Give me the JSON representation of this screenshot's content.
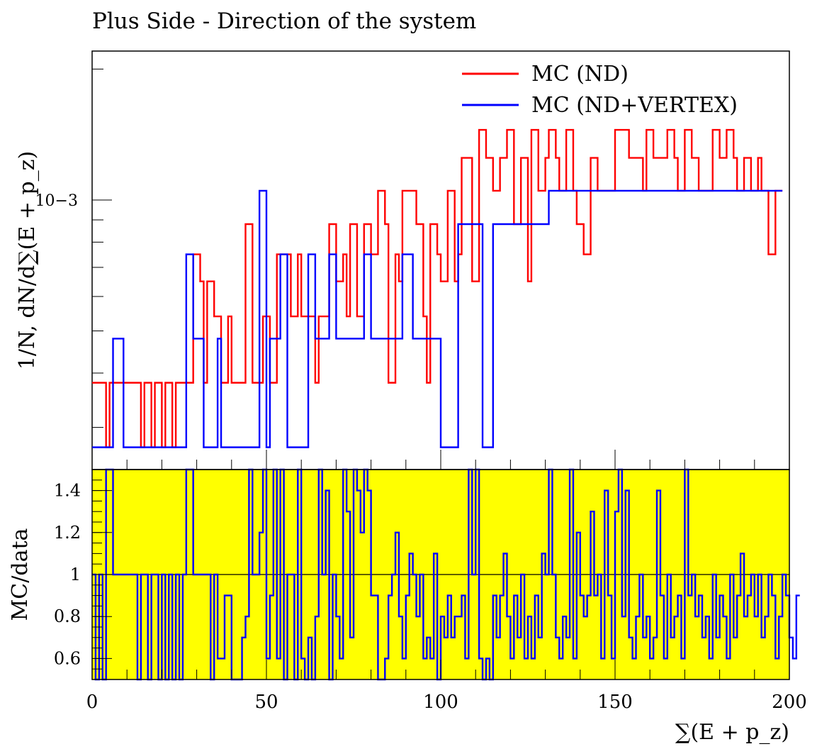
{
  "title": "Plus Side - Direction of the system",
  "chart_data": [
    {
      "type": "line",
      "panel": "main",
      "subtype": "step-histogram",
      "ylabel": "1/N, dN/d∑(E + p_z)",
      "yscale": "log",
      "ytick_labels": [
        {
          "value": 0.001,
          "label": "10−3"
        }
      ],
      "xlim": [
        0,
        200
      ],
      "legend_position": "top-right",
      "bin_width": 1,
      "series": [
        {
          "name": "MC (ND)",
          "color": "#ff0000",
          "values": [
            0.00038,
            0.00038,
            0.00038,
            0.00038,
            0.00027,
            0.00038,
            0.00038,
            0.00038,
            0.00038,
            0.00038,
            0.00038,
            0.00038,
            0.00038,
            0.00038,
            0.00027,
            0.00038,
            0.00038,
            0.00027,
            0.00038,
            0.00038,
            0.00027,
            0.00038,
            0.00038,
            0.00027,
            0.00038,
            0.00038,
            0.00038,
            0.00038,
            0.00038,
            0.00075,
            0.00075,
            0.00065,
            0.00038,
            0.00065,
            0.00065,
            0.00054,
            0.00054,
            0.00038,
            0.00038,
            0.00054,
            0.00038,
            0.00038,
            0.00038,
            0.00038,
            0.00088,
            0.00088,
            0.00038,
            0.00038,
            0.00038,
            0.00054,
            0.00054,
            0.00038,
            0.00038,
            0.00075,
            0.00075,
            0.00075,
            0.00075,
            0.00054,
            0.00054,
            0.00075,
            0.00054,
            0.00054,
            0.00054,
            0.00054,
            0.00038,
            0.00054,
            0.00054,
            0.00054,
            0.00088,
            0.00088,
            0.00065,
            0.00065,
            0.00075,
            0.00054,
            0.00088,
            0.00088,
            0.00054,
            0.00054,
            0.00088,
            0.00088,
            0.00075,
            0.00075,
            0.00105,
            0.00105,
            0.00088,
            0.00038,
            0.00038,
            0.00075,
            0.00065,
            0.00105,
            0.00105,
            0.00105,
            0.00105,
            0.00088,
            0.00088,
            0.00054,
            0.00038,
            0.00088,
            0.00088,
            0.00075,
            0.00065,
            0.00065,
            0.00105,
            0.00105,
            0.00065,
            0.00075,
            0.00125,
            0.00125,
            0.00125,
            0.00065,
            0.00065,
            0.00145,
            0.00145,
            0.00125,
            0.00125,
            0.00105,
            0.00105,
            0.00125,
            0.00125,
            0.00145,
            0.00145,
            0.00088,
            0.00088,
            0.00125,
            0.00125,
            0.00065,
            0.00145,
            0.00145,
            0.00105,
            0.00105,
            0.00125,
            0.00145,
            0.00145,
            0.00125,
            0.00105,
            0.00105,
            0.00145,
            0.00145,
            0.00105,
            0.00088,
            0.00088,
            0.00075,
            0.00075,
            0.00125,
            0.00125,
            0.00105,
            0.00105,
            0.00105,
            0.00105,
            0.00105,
            0.00145,
            0.00145,
            0.00145,
            0.00145,
            0.00125,
            0.00125,
            0.00125,
            0.00125,
            0.00105,
            0.00145,
            0.00145,
            0.00125,
            0.00125,
            0.00125,
            0.00125,
            0.00145,
            0.00145,
            0.00125,
            0.00105,
            0.00105,
            0.00145,
            0.00145,
            0.00125,
            0.00125,
            0.00105,
            0.00105,
            0.00105,
            0.00105,
            0.00145,
            0.00145,
            0.00125,
            0.00125,
            0.00145,
            0.00145,
            0.00125,
            0.00105,
            0.00105,
            0.00125,
            0.00125,
            0.00105,
            0.00105,
            0.00125,
            0.00105,
            0.00105,
            0.00075,
            0.00075,
            0.00105,
            0.00105
          ]
        },
        {
          "name": "MC (ND+VERTEX)",
          "color": "#0000ff",
          "values": [
            0.00027,
            0.00027,
            0.00027,
            0.00027,
            0.00027,
            0.00027,
            0.00048,
            0.00048,
            0.00048,
            0.00027,
            0.00027,
            0.00027,
            0.00027,
            0.00027,
            0.00027,
            0.00027,
            0.00027,
            0.00027,
            0.00027,
            0.00027,
            0.00027,
            0.00027,
            0.00027,
            0.00027,
            0.00027,
            0.00027,
            0.00027,
            0.00075,
            0.00075,
            0.00048,
            0.00048,
            0.00048,
            0.00027,
            0.00027,
            0.00027,
            0.00027,
            0.00048,
            0.00027,
            0.00027,
            0.00027,
            0.00027,
            0.00027,
            0.00027,
            0.00027,
            0.00027,
            0.00027,
            0.00027,
            0.00027,
            0.00105,
            0.00105,
            0.00027,
            0.00048,
            0.00048,
            0.00048,
            0.00075,
            0.00075,
            0.00027,
            0.00027,
            0.00027,
            0.00027,
            0.00027,
            0.00027,
            0.00075,
            0.00075,
            0.00048,
            0.00048,
            0.00048,
            0.00048,
            0.00075,
            0.00075,
            0.00048,
            0.00048,
            0.00048,
            0.00048,
            0.00048,
            0.00048,
            0.00048,
            0.00048,
            0.00075,
            0.00075,
            0.00048,
            0.00048,
            0.00048,
            0.00048,
            0.00048,
            0.00048,
            0.00048,
            0.00048,
            0.00048,
            0.00075,
            0.00075,
            0.00075,
            0.00048,
            0.00048,
            0.00048,
            0.00048,
            0.00048,
            0.00048,
            0.00048,
            0.00048,
            0.00027,
            0.00027,
            0.00027,
            0.00027,
            0.00027,
            0.00088,
            0.00088,
            0.00088,
            0.00088,
            0.00088,
            0.00088,
            0.00088,
            0.00027,
            0.00027,
            0.00027,
            0.00088,
            0.00088,
            0.00088,
            0.00088,
            0.00088,
            0.00088,
            0.00088,
            0.00088,
            0.00088,
            0.00088,
            0.00088,
            0.00088,
            0.00088,
            0.00088,
            0.00088,
            0.00088,
            0.00105,
            0.00105,
            0.00105,
            0.00105,
            0.00105,
            0.00105,
            0.00105,
            0.00105,
            0.00105,
            0.00105,
            0.00105,
            0.00105,
            0.00105,
            0.00105,
            0.00105,
            0.00105,
            0.00105,
            0.00105,
            0.00105,
            0.00105,
            0.00105,
            0.00105,
            0.00105,
            0.00105,
            0.00105,
            0.00105,
            0.00105,
            0.00105,
            0.00105,
            0.00105,
            0.00105,
            0.00105,
            0.00105,
            0.00105,
            0.00105,
            0.00105,
            0.00105,
            0.00105,
            0.00105,
            0.00105,
            0.00105,
            0.00105,
            0.00105,
            0.00105,
            0.00105,
            0.00105,
            0.00105,
            0.00105,
            0.00105,
            0.00105,
            0.00105,
            0.00105,
            0.00105,
            0.00105,
            0.00105,
            0.00105,
            0.00105,
            0.00105,
            0.00105,
            0.00105,
            0.00105,
            0.00105,
            0.00105,
            0.00105,
            0.00105,
            0.00105,
            0.00105
          ]
        }
      ]
    },
    {
      "type": "line",
      "panel": "ratio",
      "subtype": "step-histogram",
      "xlabel": "∑(E + p_z)",
      "ylabel": "MC/data",
      "ylim": [
        0.5,
        1.5
      ],
      "xlim": [
        0,
        200
      ],
      "x_ticks": [
        0,
        50,
        100,
        150,
        200
      ],
      "y_ticks": [
        0.6,
        0.8,
        1,
        1.2,
        1.4
      ],
      "y_tick_labels": [
        "0.6",
        "0.8",
        "1",
        "1.2",
        "1.4"
      ],
      "reference_line": 1,
      "band_color": "#ffff00",
      "series": [
        {
          "name": "MC (ND+VERTEX)",
          "color": "#0000ff",
          "values": [
            1.0,
            0.5,
            1.0,
            0.5,
            1.5,
            1.5,
            1.0,
            1.0,
            1.0,
            1.0,
            1.0,
            1.0,
            1.0,
            0.5,
            1.0,
            1.0,
            0.5,
            1.0,
            1.0,
            0.5,
            1.0,
            0.5,
            1.0,
            0.5,
            1.0,
            0.5,
            1.0,
            1.5,
            1.5,
            1.0,
            1.0,
            1.0,
            1.0,
            1.0,
            0.5,
            1.0,
            0.6,
            0.6,
            0.9,
            0.9,
            0.5,
            0.5,
            0.5,
            0.7,
            0.8,
            1.5,
            1.0,
            1.0,
            1.2,
            1.5,
            0.6,
            0.9,
            1.5,
            0.6,
            1.5,
            0.5,
            1.0,
            1.0,
            0.5,
            1.5,
            0.6,
            0.5,
            0.7,
            0.5,
            0.8,
            1.5,
            1.0,
            1.4,
            0.5,
            1.0,
            0.8,
            0.6,
            1.5,
            1.3,
            0.7,
            1.5,
            1.4,
            1.2,
            1.5,
            1.4,
            0.9,
            0.9,
            0.5,
            0.5,
            0.6,
            0.9,
            1.0,
            1.2,
            0.8,
            0.6,
            0.9,
            1.1,
            1.0,
            0.8,
            1.0,
            0.6,
            0.7,
            0.6,
            1.1,
            0.5,
            0.8,
            0.7,
            0.9,
            0.7,
            0.8,
            0.8,
            0.9,
            0.6,
            1.5,
            1.0,
            1.5,
            0.6,
            0.5,
            0.6,
            0.5,
            0.9,
            0.7,
            0.9,
            1.1,
            0.8,
            0.6,
            0.9,
            0.7,
            1.0,
            0.6,
            0.8,
            0.6,
            0.9,
            0.7,
            1.1,
            1.0,
            1.5,
            1.0,
            0.7,
            0.6,
            0.8,
            0.7,
            1.5,
            0.6,
            1.2,
            0.9,
            0.8,
            0.9,
            1.3,
            0.9,
            1.0,
            0.6,
            1.4,
            0.9,
            0.6,
            1.3,
            1.5,
            0.8,
            1.4,
            0.7,
            0.6,
            0.8,
            1.0,
            0.7,
            0.8,
            0.6,
            0.7,
            1.4,
            0.9,
            0.6,
            1.0,
            0.7,
            0.8,
            0.9,
            0.6,
            1.5,
            0.9,
            1.0,
            0.8,
            0.9,
            0.7,
            0.8,
            0.6,
            1.0,
            0.7,
            0.9,
            0.8,
            0.6,
            1.0,
            0.7,
            0.9,
            1.1,
            0.8,
            0.9,
            1.0,
            0.8,
            1.0,
            0.7,
            0.8,
            1.0,
            0.9,
            0.6,
            0.8,
            1.0,
            0.9,
            0.7,
            0.6,
            0.9
          ]
        }
      ]
    }
  ]
}
